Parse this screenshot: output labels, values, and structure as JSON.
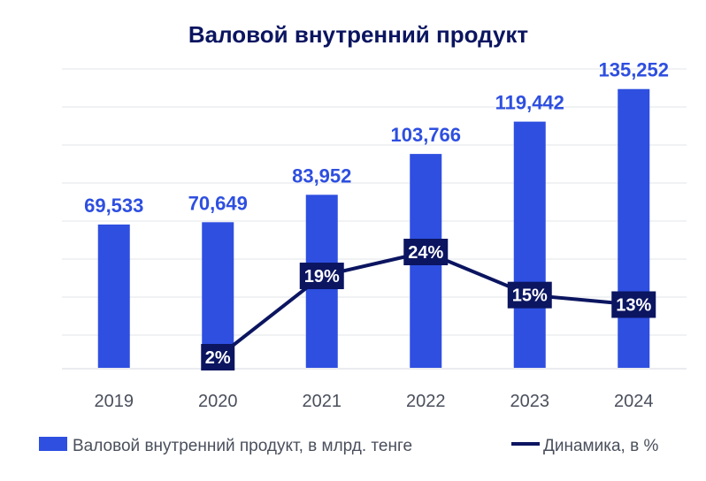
{
  "chart_data": {
    "type": "bar",
    "title": "Валовой внутренний продукт",
    "categories": [
      "2019",
      "2020",
      "2021",
      "2022",
      "2023",
      "2024"
    ],
    "ylim": [
      0,
      145
    ],
    "grid": true,
    "legend_position": "bottom",
    "series": [
      {
        "name": "Валовой внутренний продукт, в млрд. тенге",
        "type": "bar",
        "values": [
          69.533,
          70.649,
          83.952,
          103.766,
          119.442,
          135.252
        ],
        "labels": [
          "69,533",
          "70,649",
          "83,952",
          "103,766",
          "119,442",
          "135,252"
        ],
        "color": "#2e4fe0"
      },
      {
        "name": "Динамика, в %",
        "type": "line",
        "x": [
          "2020",
          "2021",
          "2022",
          "2023",
          "2024"
        ],
        "values": [
          2,
          19,
          24,
          15,
          13
        ],
        "labels": [
          "2%",
          "19%",
          "24%",
          "15%",
          "13%"
        ],
        "color": "#0b1560"
      }
    ]
  }
}
